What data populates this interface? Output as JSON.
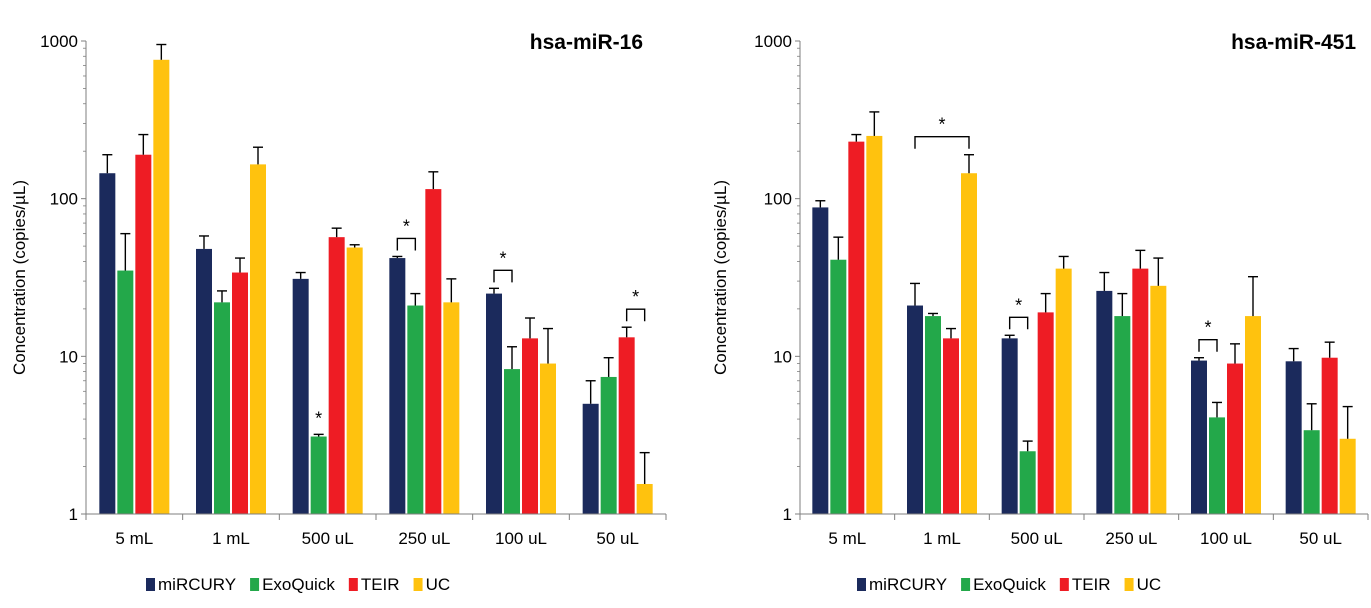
{
  "colors": {
    "miRCURY": "#1b2a5c",
    "ExoQuick": "#23a84a",
    "TEIR": "#ee1c24",
    "UC": "#ffc20e",
    "axis": "#7f7f7f"
  },
  "chart_data": [
    {
      "type": "bar",
      "scale": "log",
      "title": "hsa-miR-16",
      "ylabel": "Concentration (copies/µL)",
      "xlabel": "",
      "ylim": [
        1,
        1000
      ],
      "yticks": [
        "1",
        "10",
        "100",
        "1000"
      ],
      "categories": [
        "5 mL",
        "1 mL",
        "500 uL",
        "250 uL",
        "100 uL",
        "50 uL"
      ],
      "series": [
        {
          "name": "miRCURY",
          "values": [
            145,
            48,
            31,
            42,
            25,
            5.0
          ],
          "errors": [
            190,
            58,
            34,
            43,
            27,
            7.0
          ]
        },
        {
          "name": "ExoQuick",
          "values": [
            35,
            22,
            3.1,
            21,
            8.3,
            7.4
          ],
          "errors": [
            60,
            26,
            3.2,
            25,
            11.5,
            9.8
          ]
        },
        {
          "name": "TEIR",
          "values": [
            190,
            34,
            57,
            115,
            13,
            13.2
          ],
          "errors": [
            255,
            42,
            65,
            148,
            17.5,
            15.3
          ]
        },
        {
          "name": "UC",
          "values": [
            760,
            165,
            49,
            22,
            9.0,
            1.55
          ],
          "errors": [
            950,
            212,
            51,
            31,
            15,
            2.45
          ]
        }
      ],
      "annotations": [
        {
          "type": "star",
          "text": "*",
          "category": 2,
          "series": 1
        },
        {
          "type": "bracket",
          "text": "*",
          "category": 3,
          "from": 0,
          "to": 1
        },
        {
          "type": "bracket",
          "text": "*",
          "category": 4,
          "from": 0,
          "to": 1
        },
        {
          "type": "bracket",
          "text": "*",
          "category": 5,
          "from": 2,
          "to": 3
        }
      ],
      "legend": [
        "miRCURY",
        "ExoQuick",
        "TEIR",
        "UC"
      ],
      "legend_position": "bottom"
    },
    {
      "type": "bar",
      "scale": "log",
      "title": "hsa-miR-451",
      "ylabel": "Concentration (copies/µL)",
      "xlabel": "",
      "ylim": [
        1,
        1000
      ],
      "yticks": [
        "1",
        "10",
        "100",
        "1000"
      ],
      "categories": [
        "5 mL",
        "1 mL",
        "500 uL",
        "250 uL",
        "100 uL",
        "50 uL"
      ],
      "series": [
        {
          "name": "miRCURY",
          "values": [
            88,
            21,
            13,
            26,
            9.4,
            9.3
          ],
          "errors": [
            97,
            29,
            13.6,
            34,
            9.8,
            11.2
          ]
        },
        {
          "name": "ExoQuick",
          "values": [
            41,
            18,
            2.5,
            18,
            4.1,
            3.4
          ],
          "errors": [
            57,
            18.7,
            2.9,
            25,
            5.1,
            5.0
          ]
        },
        {
          "name": "TEIR",
          "values": [
            230,
            13,
            19,
            36,
            9.0,
            9.8
          ],
          "errors": [
            255,
            15,
            25,
            47,
            12,
            12.3
          ]
        },
        {
          "name": "UC",
          "values": [
            250,
            145,
            36,
            28,
            18,
            3.0
          ],
          "errors": [
            355,
            190,
            43,
            42,
            32,
            4.8
          ]
        }
      ],
      "annotations": [
        {
          "type": "bracket",
          "text": "*",
          "category": 1,
          "from": 0,
          "to": 3
        },
        {
          "type": "bracket",
          "text": "*",
          "category": 2,
          "from": 0,
          "to": 1
        },
        {
          "type": "bracket",
          "text": "*",
          "category": 4,
          "from": 0,
          "to": 1
        }
      ],
      "legend": [
        "miRCURY",
        "ExoQuick",
        "TEIR",
        "UC"
      ],
      "legend_position": "bottom"
    }
  ]
}
